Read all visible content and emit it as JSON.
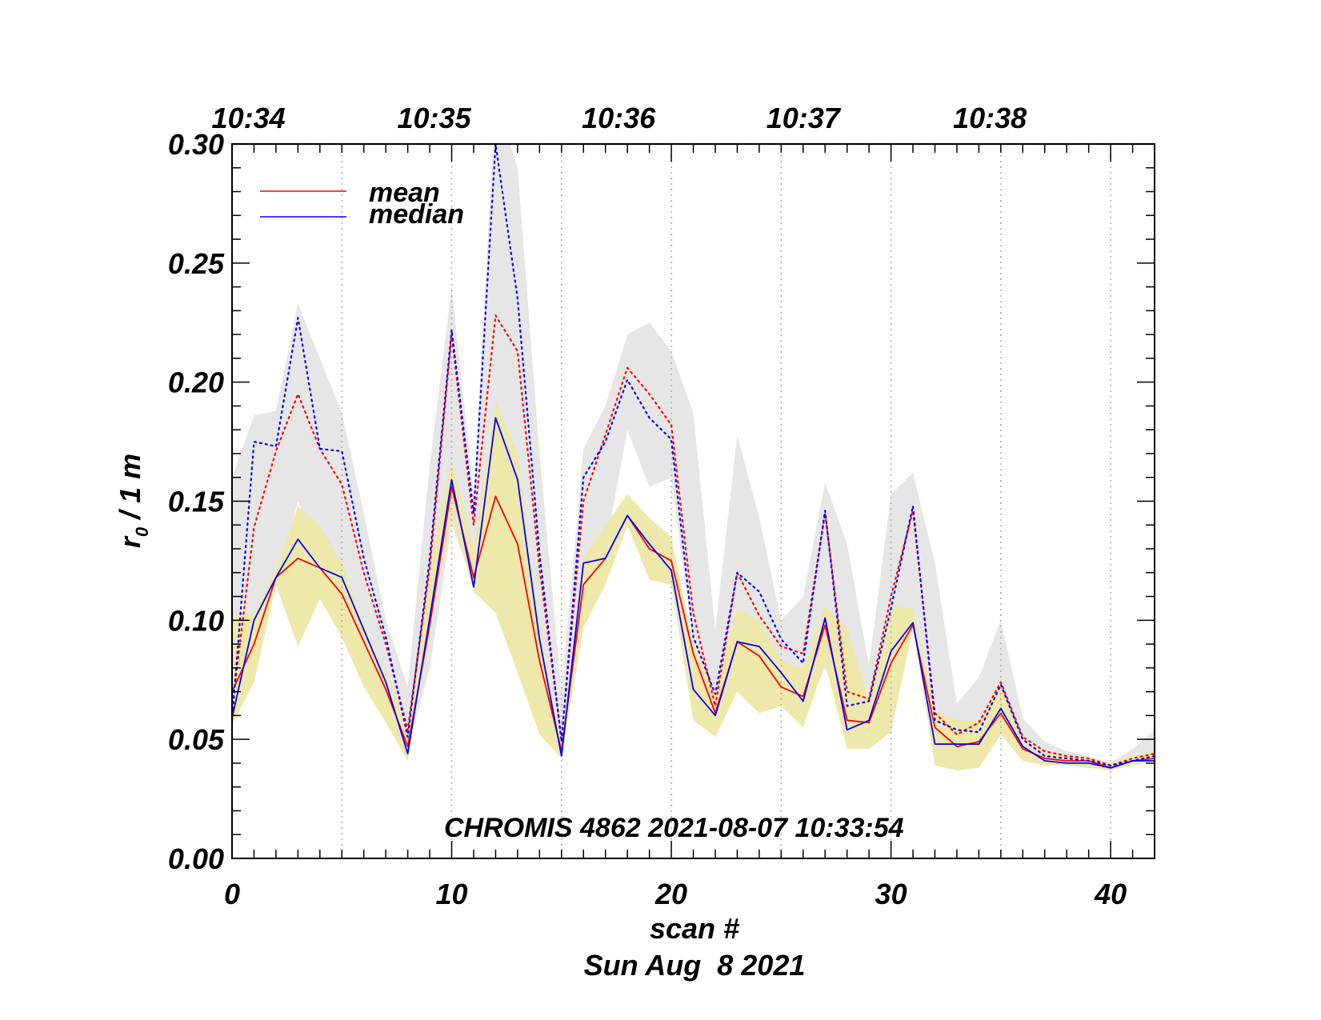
{
  "chart_data": {
    "type": "line",
    "annotation": "CHROMIS 4862 2021-08-07 10:33:54",
    "xlabel": "scan #",
    "xlabel2": "Sun Aug  8 2021",
    "ylabel_main": "r",
    "ylabel_sub": "0",
    "ylabel_rest": " / 1 m",
    "xlim": [
      0,
      42
    ],
    "ylim": [
      0,
      0.3
    ],
    "x_ticks": [
      0,
      10,
      20,
      30,
      40
    ],
    "y_ticks": [
      "0.00",
      "0.05",
      "0.10",
      "0.15",
      "0.20",
      "0.25",
      "0.30"
    ],
    "top_axis": [
      {
        "label": "10:34",
        "x": 0.75
      },
      {
        "label": "10:35",
        "x": 9.2
      },
      {
        "label": "10:36",
        "x": 17.6
      },
      {
        "label": "10:37",
        "x": 26.0
      },
      {
        "label": "10:38",
        "x": 34.5
      }
    ],
    "vgrid": [
      5,
      10,
      15,
      20,
      25,
      30,
      35,
      40
    ],
    "legend": [
      {
        "name": "mean",
        "color": "#ff0000"
      },
      {
        "name": "median",
        "color": "#0000ff"
      }
    ],
    "colors": {
      "mean": "#ff0000",
      "median": "#0000ff",
      "band_outer": "#e6e6e6",
      "band_inner": "#eee8aa",
      "grid": "#aaaaaa"
    },
    "x": [
      0,
      1,
      2,
      3,
      4,
      5,
      6,
      7,
      8,
      9,
      10,
      11,
      12,
      13,
      14,
      15,
      16,
      17,
      18,
      19,
      20,
      21,
      22,
      23,
      24,
      25,
      26,
      27,
      28,
      29,
      30,
      31,
      32,
      33,
      34,
      35,
      36,
      37,
      38,
      39,
      40,
      41,
      42
    ],
    "band_outer_upper": [
      0.16,
      0.186,
      0.188,
      0.233,
      0.21,
      0.187,
      0.145,
      0.1,
      0.072,
      0.165,
      0.24,
      0.153,
      0.32,
      0.29,
      0.17,
      0.07,
      0.172,
      0.19,
      0.22,
      0.225,
      0.213,
      0.187,
      0.096,
      0.178,
      0.143,
      0.1,
      0.11,
      0.158,
      0.132,
      0.081,
      0.153,
      0.162,
      0.124,
      0.065,
      0.076,
      0.1,
      0.059,
      0.049,
      0.045,
      0.043,
      0.04,
      0.046,
      0.054
    ],
    "band_outer_lower": [
      0.06,
      0.09,
      0.115,
      0.15,
      0.13,
      0.115,
      0.09,
      0.065,
      0.045,
      0.08,
      0.14,
      0.115,
      0.125,
      0.1,
      0.06,
      0.045,
      0.11,
      0.13,
      0.18,
      0.156,
      0.16,
      0.09,
      0.055,
      0.095,
      0.08,
      0.07,
      0.06,
      0.08,
      0.058,
      0.06,
      0.075,
      0.105,
      0.055,
      0.05,
      0.05,
      0.06,
      0.048,
      0.044,
      0.042,
      0.041,
      0.039,
      0.041,
      0.042
    ],
    "band_inner_upper": [
      0.102,
      0.103,
      0.121,
      0.148,
      0.14,
      0.124,
      0.098,
      0.078,
      0.055,
      0.124,
      0.168,
      0.13,
      0.192,
      0.17,
      0.095,
      0.05,
      0.126,
      0.14,
      0.153,
      0.143,
      0.135,
      0.09,
      0.07,
      0.105,
      0.1,
      0.083,
      0.08,
      0.106,
      0.097,
      0.066,
      0.106,
      0.105,
      0.062,
      0.058,
      0.058,
      0.075,
      0.05,
      0.045,
      0.043,
      0.042,
      0.04,
      0.043,
      0.045
    ],
    "band_inner_lower": [
      0.056,
      0.074,
      0.115,
      0.089,
      0.109,
      0.093,
      0.072,
      0.057,
      0.041,
      0.097,
      0.145,
      0.112,
      0.103,
      0.078,
      0.052,
      0.042,
      0.097,
      0.115,
      0.14,
      0.117,
      0.115,
      0.058,
      0.051,
      0.07,
      0.061,
      0.064,
      0.055,
      0.082,
      0.046,
      0.046,
      0.053,
      0.097,
      0.039,
      0.037,
      0.038,
      0.052,
      0.041,
      0.039,
      0.039,
      0.038,
      0.037,
      0.039,
      0.041
    ],
    "series": [
      {
        "name": "mean",
        "color": "#ff0000",
        "style": "solid",
        "values": [
          0.07,
          0.09,
          0.118,
          0.126,
          0.122,
          0.111,
          0.091,
          0.071,
          0.047,
          0.098,
          0.156,
          0.118,
          0.152,
          0.132,
          0.083,
          0.045,
          0.115,
          0.126,
          0.144,
          0.13,
          0.125,
          0.086,
          0.061,
          0.091,
          0.085,
          0.072,
          0.068,
          0.098,
          0.058,
          0.057,
          0.082,
          0.098,
          0.055,
          0.047,
          0.049,
          0.061,
          0.046,
          0.042,
          0.041,
          0.041,
          0.038,
          0.041,
          0.042
        ]
      },
      {
        "name": "median",
        "color": "#0000ff",
        "style": "solid",
        "values": [
          0.059,
          0.1,
          0.118,
          0.134,
          0.122,
          0.118,
          0.096,
          0.074,
          0.044,
          0.101,
          0.159,
          0.114,
          0.185,
          0.159,
          0.092,
          0.043,
          0.124,
          0.126,
          0.144,
          0.132,
          0.121,
          0.071,
          0.06,
          0.091,
          0.089,
          0.078,
          0.066,
          0.101,
          0.054,
          0.058,
          0.087,
          0.099,
          0.048,
          0.048,
          0.048,
          0.063,
          0.047,
          0.041,
          0.04,
          0.04,
          0.038,
          0.041,
          0.041
        ]
      },
      {
        "name": "mean",
        "color": "#ff0000",
        "style": "dotted",
        "values": [
          0.063,
          0.139,
          0.171,
          0.195,
          0.172,
          0.157,
          0.12,
          0.09,
          0.054,
          0.122,
          0.22,
          0.14,
          0.228,
          0.213,
          0.122,
          0.05,
          0.15,
          0.178,
          0.206,
          0.195,
          0.182,
          0.103,
          0.064,
          0.12,
          0.102,
          0.089,
          0.086,
          0.145,
          0.07,
          0.067,
          0.11,
          0.146,
          0.061,
          0.052,
          0.057,
          0.074,
          0.051,
          0.045,
          0.043,
          0.042,
          0.039,
          0.042,
          0.044
        ]
      },
      {
        "name": "median",
        "color": "#0000ff",
        "style": "dotted",
        "values": [
          0.058,
          0.175,
          0.173,
          0.227,
          0.172,
          0.171,
          0.126,
          0.093,
          0.051,
          0.126,
          0.222,
          0.145,
          0.3,
          0.235,
          0.128,
          0.049,
          0.16,
          0.175,
          0.201,
          0.185,
          0.176,
          0.093,
          0.069,
          0.12,
          0.112,
          0.092,
          0.082,
          0.146,
          0.064,
          0.066,
          0.105,
          0.148,
          0.058,
          0.054,
          0.053,
          0.073,
          0.05,
          0.043,
          0.042,
          0.041,
          0.039,
          0.041,
          0.043
        ]
      }
    ]
  }
}
